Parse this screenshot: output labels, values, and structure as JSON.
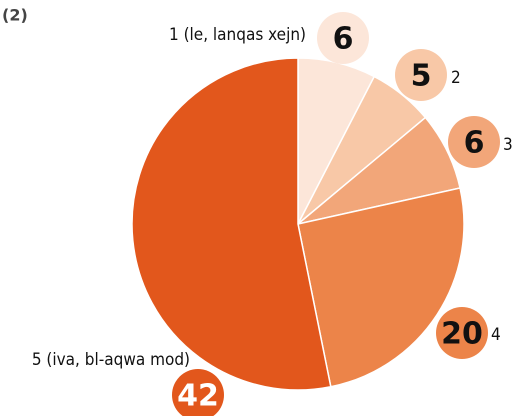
{
  "chart_data": {
    "type": "pie",
    "title": "(2)",
    "categories": [
      "1 (le, lanqas xejn)",
      "2",
      "3",
      "4",
      "5 (iva, bl-aqwa mod)"
    ],
    "values": [
      6,
      5,
      6,
      20,
      42
    ],
    "colors": [
      "#fce6d9",
      "#f8c8a7",
      "#f2a679",
      "#ec8449",
      "#e2571c"
    ]
  }
}
